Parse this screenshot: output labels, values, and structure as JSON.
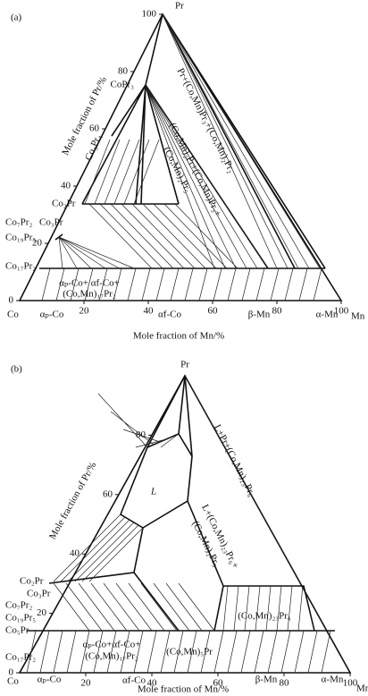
{
  "panels": [
    {
      "label": "(a)",
      "apex_label": "Pr",
      "left_corner_label": "Co",
      "right_corner_label": "Mn",
      "pr_axis": {
        "title": "Mole fraction of Pr/%",
        "ticks": [
          0,
          20,
          40,
          60,
          80,
          100
        ]
      },
      "mn_axis": {
        "title": "Mole fraction of Mn/%",
        "ticks": [
          20,
          40,
          60,
          80,
          100
        ]
      },
      "phase_labels": [
        "CoPr₃",
        "Co₃Pr₄",
        "Co₂Pr",
        "Co₇Pr₂",
        "Co₃Pr",
        "Co₁₉Pr₅",
        "Co₁₇Pr₂",
        "αₚ-Co",
        "αf-Co",
        "β-Mn",
        "α-Mn"
      ],
      "region_labels": [
        "Pr+(Co,Mn)Pr₃+(Co,Mn)₂Pr₂",
        "(Co,Mn)₂Pr+(Co,Mn)Pr₃+",
        "(Co,Mn)₂Pr₅",
        "αₚ-Co+ αf-Co+",
        "(Co,Mn)₁₇Pr₂"
      ]
    },
    {
      "label": "(b)",
      "apex_label": "Pr",
      "left_corner_label": "Co",
      "right_corner_label": "Mn",
      "pr_axis": {
        "title": "Mole fraction of Pr/%",
        "ticks": [
          0,
          20,
          40,
          60,
          80
        ]
      },
      "mn_axis": {
        "title": "Mole fraction of Mn/%",
        "ticks": [
          20,
          40,
          60,
          80,
          100
        ]
      },
      "phase_labels": [
        "Co₂Pr",
        "Co₇Pr₂",
        "Co₃Pr",
        "Co₁₉Pr₅",
        "Co₅Pr",
        "Co₁₇Pr₂",
        "αₚ-Co",
        "αf-Co",
        "β-Mn",
        "α-Mn"
      ],
      "region_labels": [
        "L",
        "L+Pr+(Co,Mn)₂₃Pr₆",
        "L+(Co,Mn)₂₃Pr₆+",
        "(Co,Mn)₂Pr₅",
        "(Co,Mn)₂₃Pr₆",
        "αₚ-Co+αf-Co+",
        "(Co,Mn)₁₇Pr₂",
        "(Co,Mn)₅Pr"
      ]
    }
  ]
}
